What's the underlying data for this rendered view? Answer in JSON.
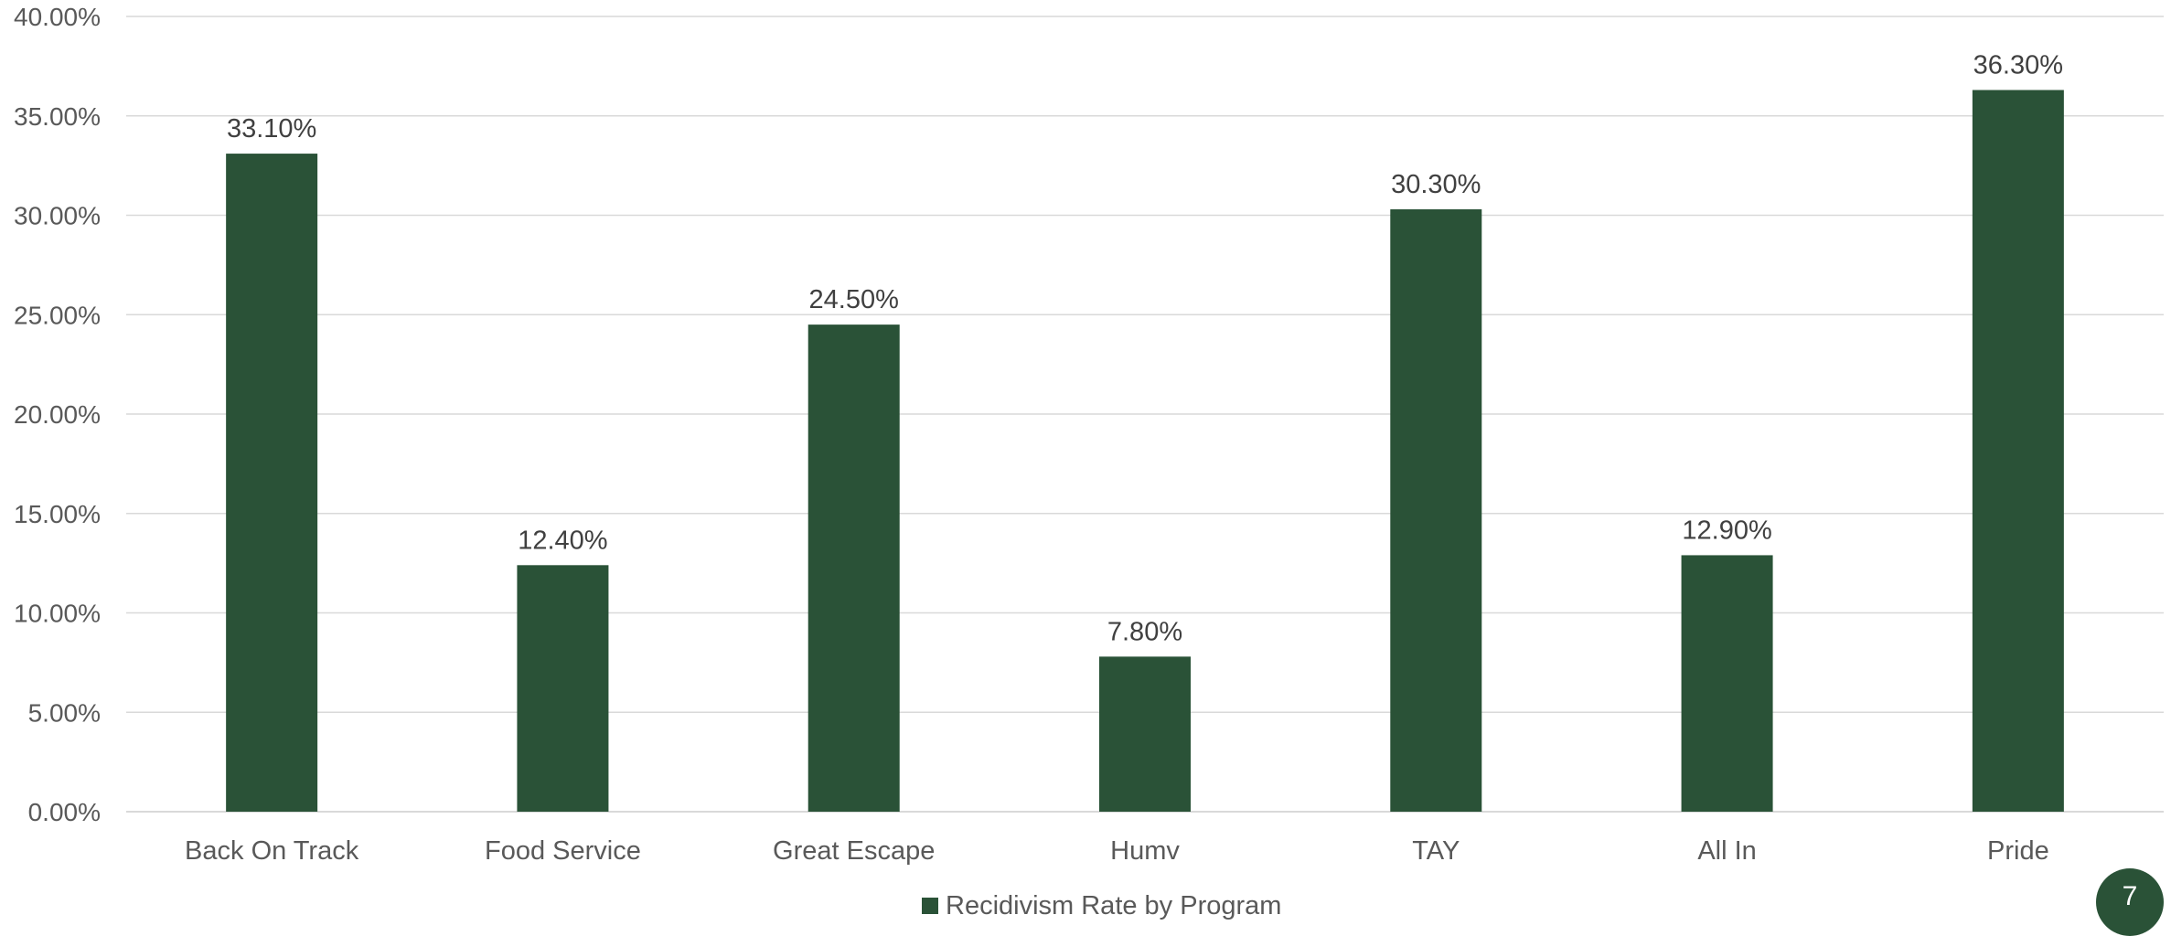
{
  "page_number": "7",
  "colors": {
    "bar": "#2a5237",
    "grid": "#d9d9d9",
    "axis_text": "#595959",
    "badge": "#2a5237"
  },
  "chart_data": {
    "type": "bar",
    "title": "",
    "xlabel": "",
    "ylabel": "",
    "categories": [
      "Back On Track",
      "Food Service",
      "Great Escape",
      "Humv",
      "TAY",
      "All In",
      "Pride"
    ],
    "series": [
      {
        "name": "Recidivism Rate by Program",
        "values": [
          33.1,
          12.4,
          24.5,
          7.8,
          30.3,
          12.9,
          36.3
        ],
        "labels": [
          "33.10%",
          "12.40%",
          "24.50%",
          "7.80%",
          "30.30%",
          "12.90%",
          "36.30%"
        ]
      }
    ],
    "ylim": [
      0,
      40
    ],
    "yticks": [
      0,
      5,
      10,
      15,
      20,
      25,
      30,
      35,
      40
    ],
    "ytick_labels": [
      "0.00%",
      "5.00%",
      "10.00%",
      "15.00%",
      "20.00%",
      "25.00%",
      "30.00%",
      "35.00%",
      "40.00%"
    ],
    "grid": true,
    "legend": "bottom"
  }
}
